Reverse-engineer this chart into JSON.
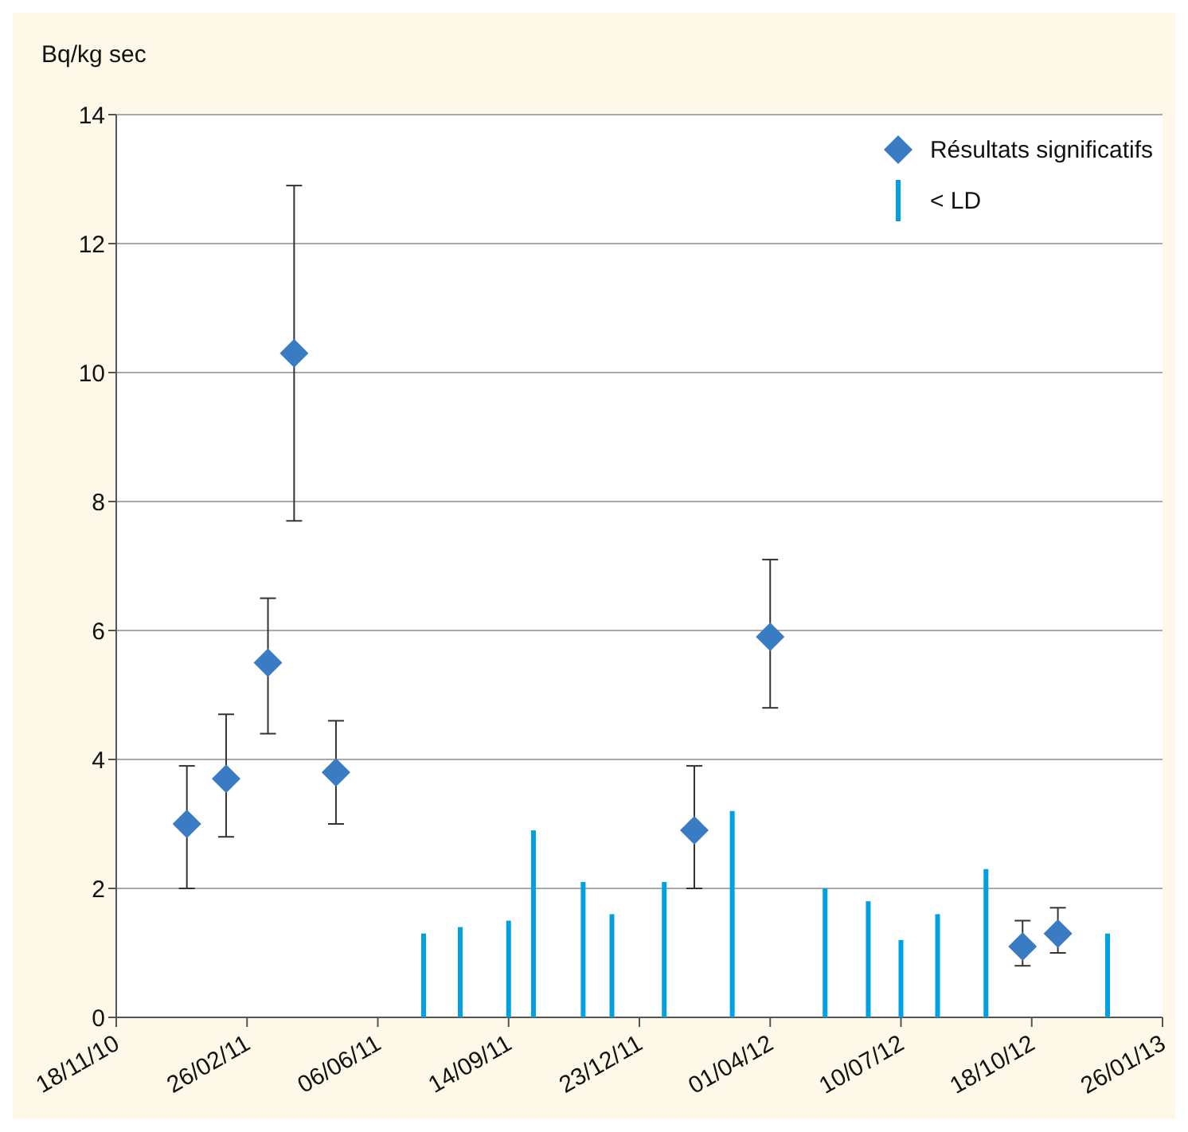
{
  "chart_data": {
    "type": "scatter",
    "ylabel": "Bq/kg sec",
    "xlim": [
      "2010-11-18",
      "2013-01-26"
    ],
    "xticks": [
      {
        "value": "2010-11-18",
        "label": "18/11/10"
      },
      {
        "value": "2011-02-26",
        "label": "26/02/11"
      },
      {
        "value": "2011-06-06",
        "label": "06/06/11"
      },
      {
        "value": "2011-09-14",
        "label": "14/09/11"
      },
      {
        "value": "2011-12-23",
        "label": "23/12/11"
      },
      {
        "value": "2012-04-01",
        "label": "01/04/12"
      },
      {
        "value": "2012-07-10",
        "label": "10/07/12"
      },
      {
        "value": "2012-10-18",
        "label": "18/10/12"
      },
      {
        "value": "2013-01-26",
        "label": "26/01/13"
      }
    ],
    "ylim": [
      0,
      14
    ],
    "yticks": [
      0,
      2,
      4,
      6,
      8,
      10,
      12,
      14
    ],
    "grid": "y",
    "legend": "top right",
    "marker": "diamond",
    "series": [
      {
        "name": "Résultats significatifs",
        "color": "#3a7cc4",
        "x": [
          "2011-01-11",
          "2011-02-10",
          "2011-03-14",
          "2011-04-03",
          "2011-05-05",
          "2012-02-03",
          "2012-04-01",
          "2012-10-11",
          "2012-11-07"
        ],
        "values": [
          3.0,
          3.7,
          5.5,
          10.3,
          3.8,
          2.9,
          5.9,
          1.1,
          1.3
        ],
        "errors": [
          [
            2.0,
            3.9
          ],
          [
            2.8,
            4.7
          ],
          [
            4.4,
            6.5
          ],
          [
            7.7,
            12.9
          ],
          [
            3.0,
            4.6
          ],
          [
            2.0,
            3.9
          ],
          [
            4.8,
            7.1
          ],
          [
            0.8,
            1.5
          ],
          [
            1.0,
            1.7
          ]
        ]
      },
      {
        "name": "< LD",
        "type": "bar",
        "color": "#00a0e3",
        "x": [
          "2011-07-11",
          "2011-08-08",
          "2011-09-14",
          "2011-10-03",
          "2011-11-10",
          "2011-12-02",
          "2012-01-11",
          "2012-03-03",
          "2012-05-13",
          "2012-06-15",
          "2012-07-10",
          "2012-08-07",
          "2012-09-13",
          "2012-12-15"
        ],
        "values": [
          1.3,
          1.4,
          1.5,
          2.9,
          2.1,
          1.6,
          2.1,
          3.2,
          2.0,
          1.8,
          1.2,
          1.6,
          2.3,
          1.3
        ]
      }
    ]
  }
}
